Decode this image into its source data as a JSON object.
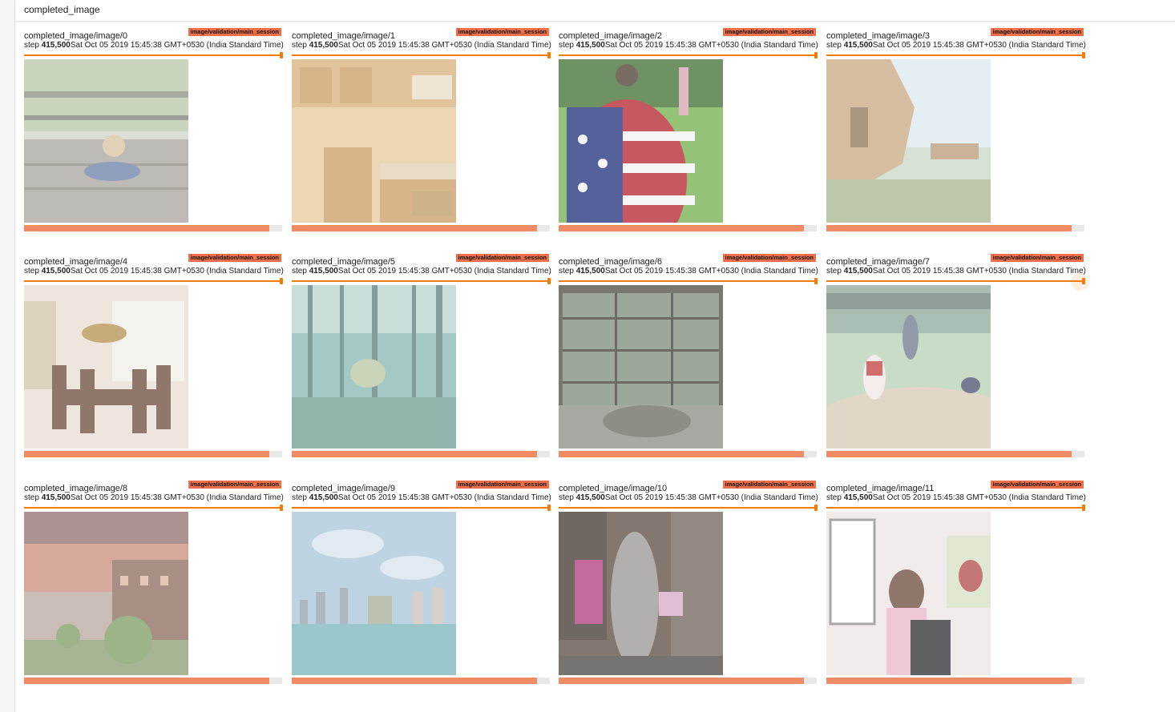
{
  "section": {
    "title": "completed_image"
  },
  "run_label": "image/validation/main_session",
  "step_prefix": "step ",
  "step_value": "415,500",
  "timestamp": "Sat Oct 05 2019 15:45:38 GMT+0530 (India Standard Time)",
  "colors": {
    "accent": "#f57c00",
    "run_badge": "#ee6f4a",
    "bar_fill": "#ef8c66",
    "bar_bg": "#e8e8e8"
  },
  "cards": [
    {
      "title": "completed_image/image/0",
      "progress": 0.95,
      "scene": "boardwalk-child"
    },
    {
      "title": "completed_image/image/1",
      "progress": 0.95,
      "scene": "kitchen"
    },
    {
      "title": "completed_image/image/2",
      "progress": 0.95,
      "scene": "golf-flag"
    },
    {
      "title": "completed_image/image/3",
      "progress": 0.95,
      "scene": "sea-cliff"
    },
    {
      "title": "completed_image/image/4",
      "progress": 0.95,
      "scene": "dining-room"
    },
    {
      "title": "completed_image/image/5",
      "progress": 0.95,
      "scene": "forest"
    },
    {
      "title": "completed_image/image/6",
      "progress": 0.95,
      "scene": "museum-turtle"
    },
    {
      "title": "completed_image/image/7",
      "progress": 0.95,
      "scene": "baseball"
    },
    {
      "title": "completed_image/image/8",
      "progress": 0.95,
      "scene": "sunset-building"
    },
    {
      "title": "completed_image/image/9",
      "progress": 0.95,
      "scene": "city-sea"
    },
    {
      "title": "completed_image/image/10",
      "progress": 0.95,
      "scene": "statue-street"
    },
    {
      "title": "completed_image/image/11",
      "progress": 0.95,
      "scene": "bus-interior"
    }
  ]
}
